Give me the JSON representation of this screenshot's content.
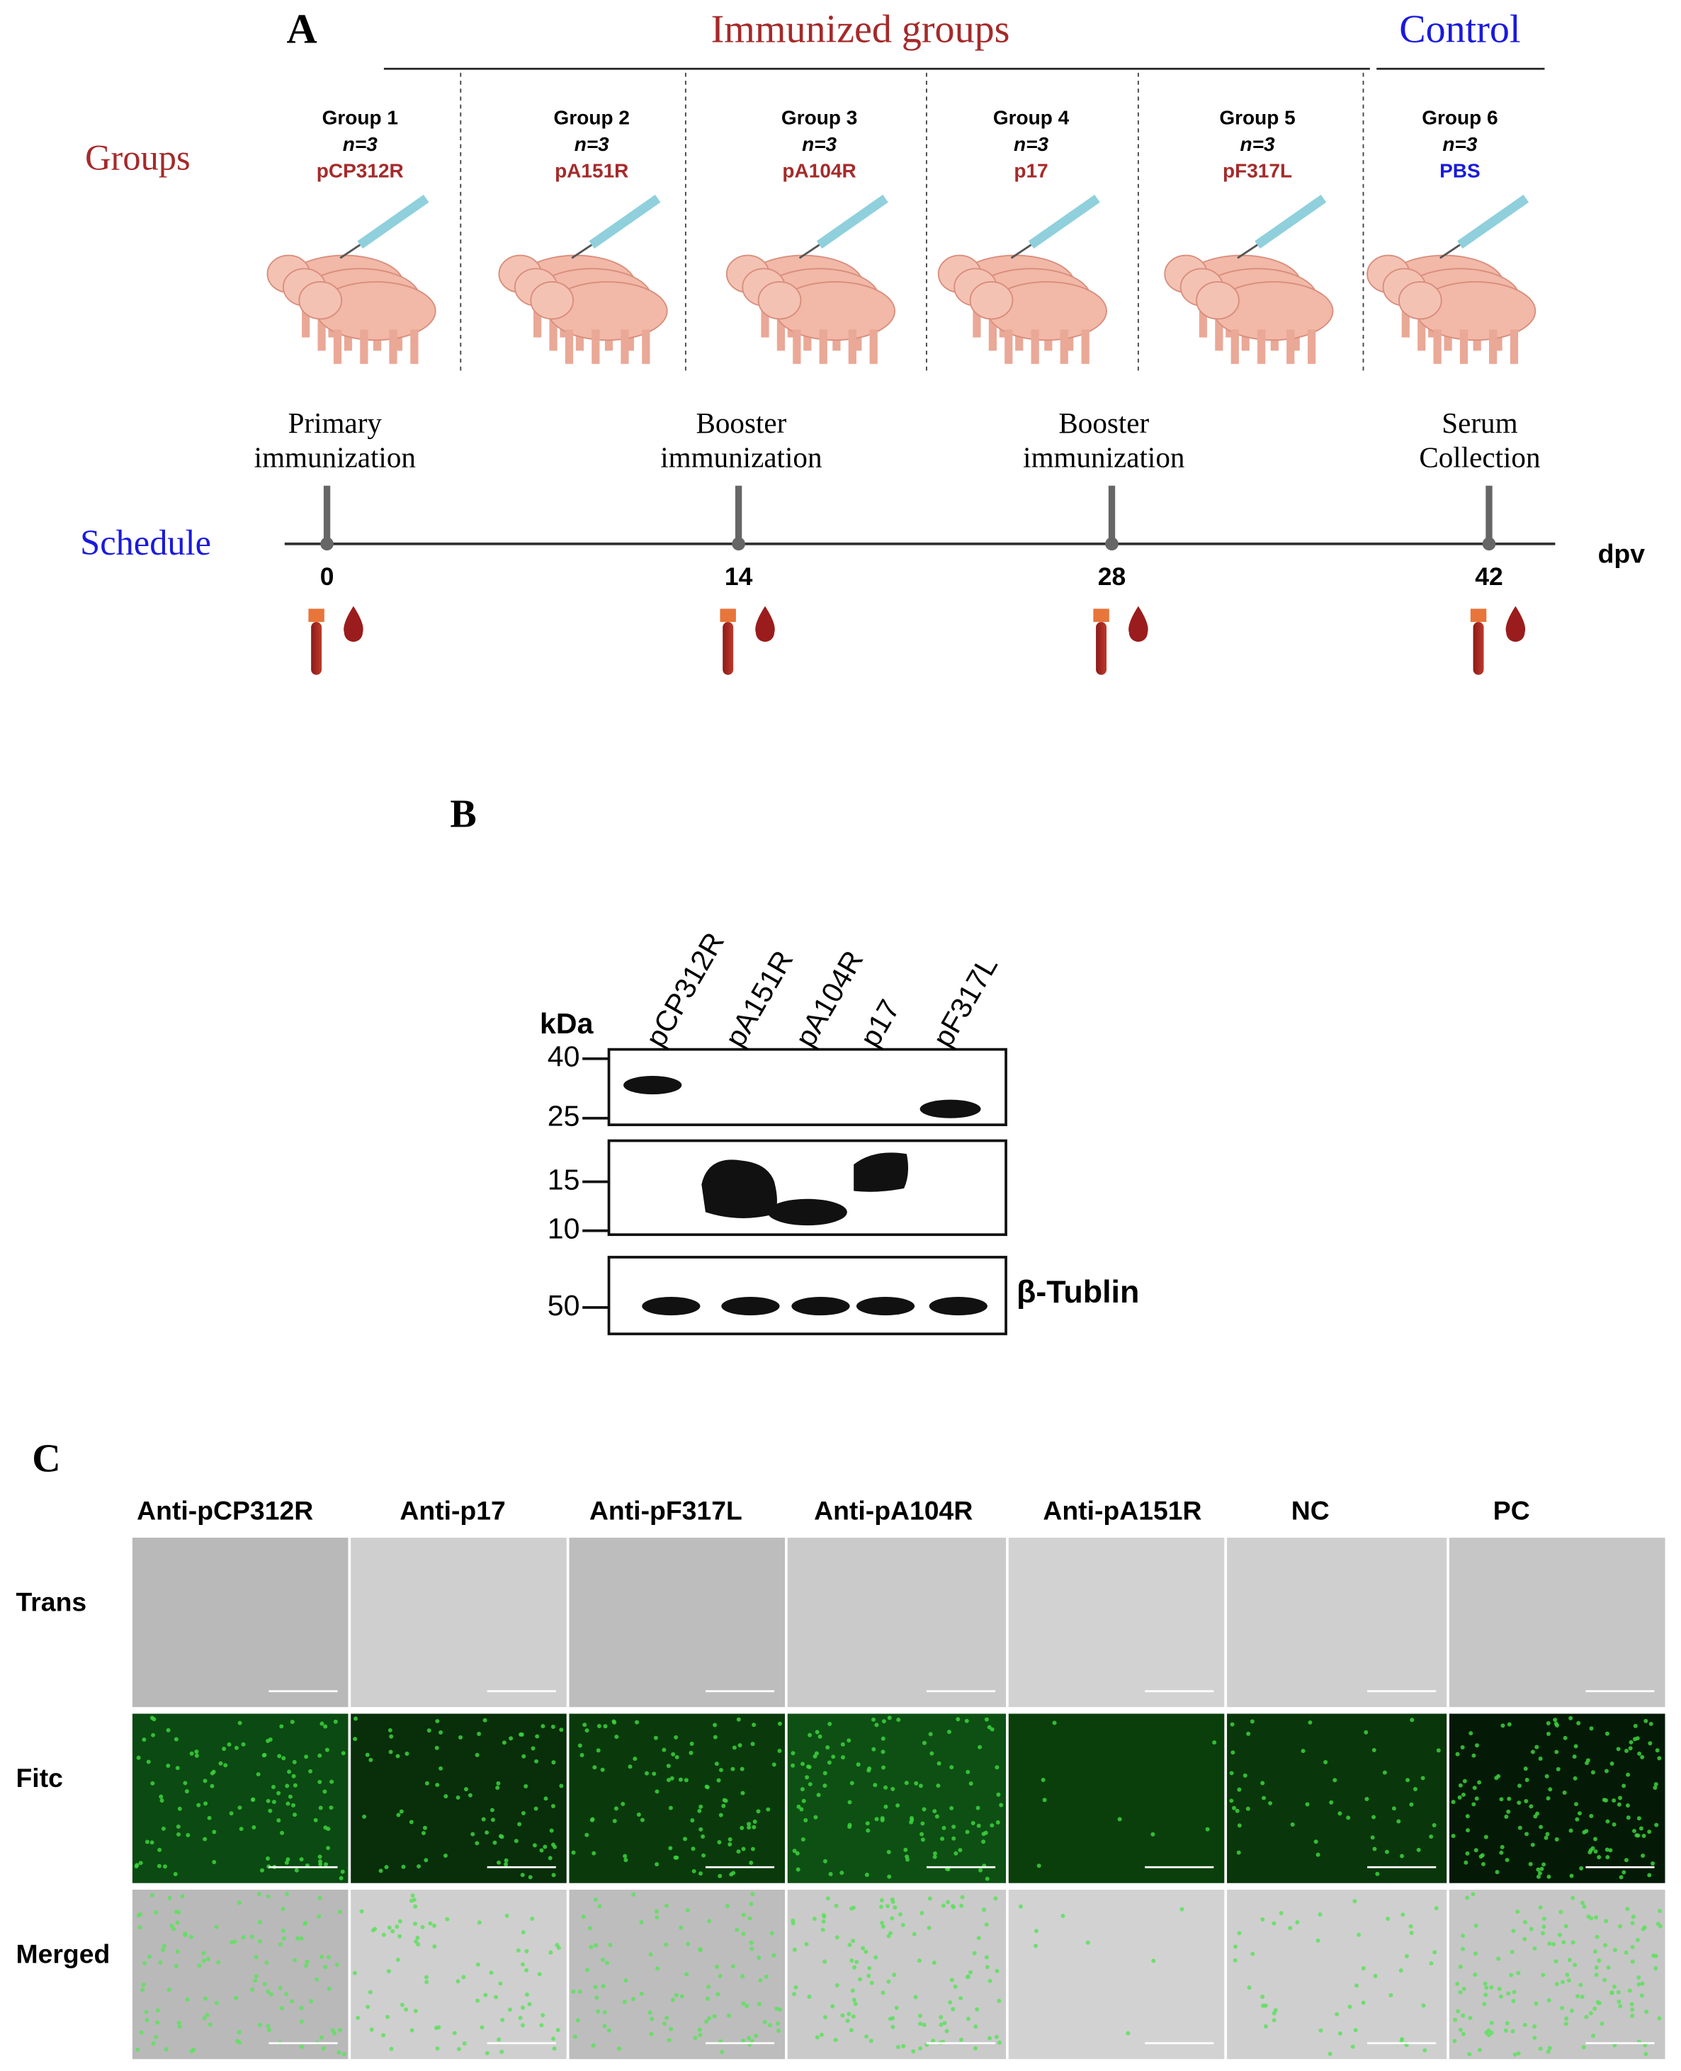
{
  "panel_a": {
    "label": "A",
    "immunized_header": "Immunized groups",
    "control_header": "Control",
    "groups_label": "Groups",
    "schedule_label": "Schedule",
    "groups": [
      {
        "name": "Group 1",
        "n": "n=3",
        "antigen": "pCP312R"
      },
      {
        "name": "Group 2",
        "n": "n=3",
        "antigen": "pA151R"
      },
      {
        "name": "Group 3",
        "n": "n=3",
        "antigen": "pA104R"
      },
      {
        "name": "Group 4",
        "n": "n=3",
        "antigen": "p17"
      },
      {
        "name": "Group 5",
        "n": "n=3",
        "antigen": "pF317L"
      },
      {
        "name": "Group  6",
        "n": "n=3",
        "antigen": "PBS"
      }
    ],
    "events": [
      {
        "lines": [
          "Primary",
          "immunization"
        ],
        "day": "0"
      },
      {
        "lines": [
          "Booster",
          "immunization"
        ],
        "day": "14"
      },
      {
        "lines": [
          "Booster",
          "immunization"
        ],
        "day": "28"
      },
      {
        "lines": [
          "Serum",
          "Collection"
        ],
        "day": "42"
      }
    ],
    "unit": "dpv"
  },
  "panel_b": {
    "label": "B",
    "kda_label": "kDa",
    "lanes": [
      "pCP312R",
      "pA151R",
      "pA104R",
      "p17",
      "pF317L"
    ],
    "markers": [
      "40",
      "25",
      "15",
      "10",
      "50"
    ],
    "loading_control": "β-Tublin"
  },
  "panel_c": {
    "label": "C",
    "columns": [
      "Anti-pCP312R",
      "Anti-p17",
      "Anti-pF317L",
      "Anti-pA104R",
      "Anti-pA151R",
      "NC",
      "PC"
    ],
    "rows": [
      "Trans",
      "Fitc",
      "Merged"
    ]
  }
}
